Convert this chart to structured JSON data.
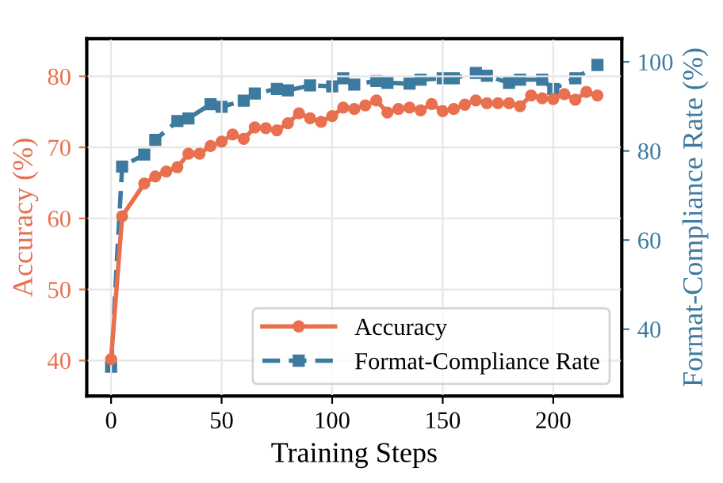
{
  "chart_data": {
    "type": "line",
    "xlabel": "Training Steps",
    "ylabel": "Accuracy (%)",
    "y2label": "Format-Compliance Rate (%)",
    "xlim": [
      -11,
      231
    ],
    "xticks": [
      0,
      50,
      100,
      150,
      200
    ],
    "ylim": [
      35,
      85.3
    ],
    "yticks": [
      40,
      50,
      60,
      70,
      80
    ],
    "y2lim": [
      25,
      105.2
    ],
    "y2ticks": [
      40,
      60,
      80,
      100
    ],
    "grid": true,
    "legend": "bottom right",
    "series": [
      {
        "name": "Accuracy",
        "color": "#e8704f",
        "marker": "circle",
        "line_style": "solid",
        "x": [
          0,
          5,
          15,
          20,
          25,
          30,
          35,
          40,
          45,
          50,
          55,
          60,
          65,
          70,
          75,
          80,
          85,
          90,
          95,
          100,
          105,
          110,
          115,
          120,
          125,
          130,
          135,
          140,
          145,
          150,
          155,
          160,
          165,
          170,
          175,
          180,
          185,
          190,
          195,
          200,
          205,
          210,
          215,
          220
        ],
        "values": [
          40.2,
          60.3,
          64.9,
          65.9,
          66.6,
          67.2,
          69.1,
          69.1,
          70.2,
          70.8,
          71.8,
          71.2,
          72.8,
          72.7,
          72.4,
          73.4,
          74.8,
          74.1,
          73.6,
          74.4,
          75.6,
          75.4,
          75.9,
          76.6,
          74.9,
          75.4,
          75.6,
          75.2,
          76.1,
          75.1,
          75.4,
          76.0,
          76.6,
          76.2,
          76.2,
          76.2,
          75.8,
          77.3,
          76.9,
          76.8,
          77.5,
          76.7,
          77.8,
          77.3
        ]
      },
      {
        "name": "Format-Compliance Rate",
        "color": "#3d7aa0",
        "marker": "square",
        "line_style": "dashed",
        "axis": "y2",
        "x": [
          0,
          5,
          15,
          20,
          30,
          35,
          45,
          50,
          60,
          65,
          75,
          80,
          90,
          100,
          105,
          110,
          120,
          125,
          135,
          140,
          150,
          155,
          165,
          170,
          180,
          185,
          195,
          200,
          210,
          220
        ],
        "values": [
          31.6,
          76.5,
          79.2,
          82.5,
          86.7,
          87.3,
          90.5,
          89.9,
          91.3,
          92.9,
          93.9,
          93.6,
          94.7,
          94.5,
          96.3,
          94.9,
          95.7,
          95.3,
          95.1,
          96.0,
          96.3,
          96.3,
          97.5,
          96.9,
          95.3,
          96.0,
          96.0,
          93.9,
          96.3,
          99.3
        ]
      }
    ]
  }
}
